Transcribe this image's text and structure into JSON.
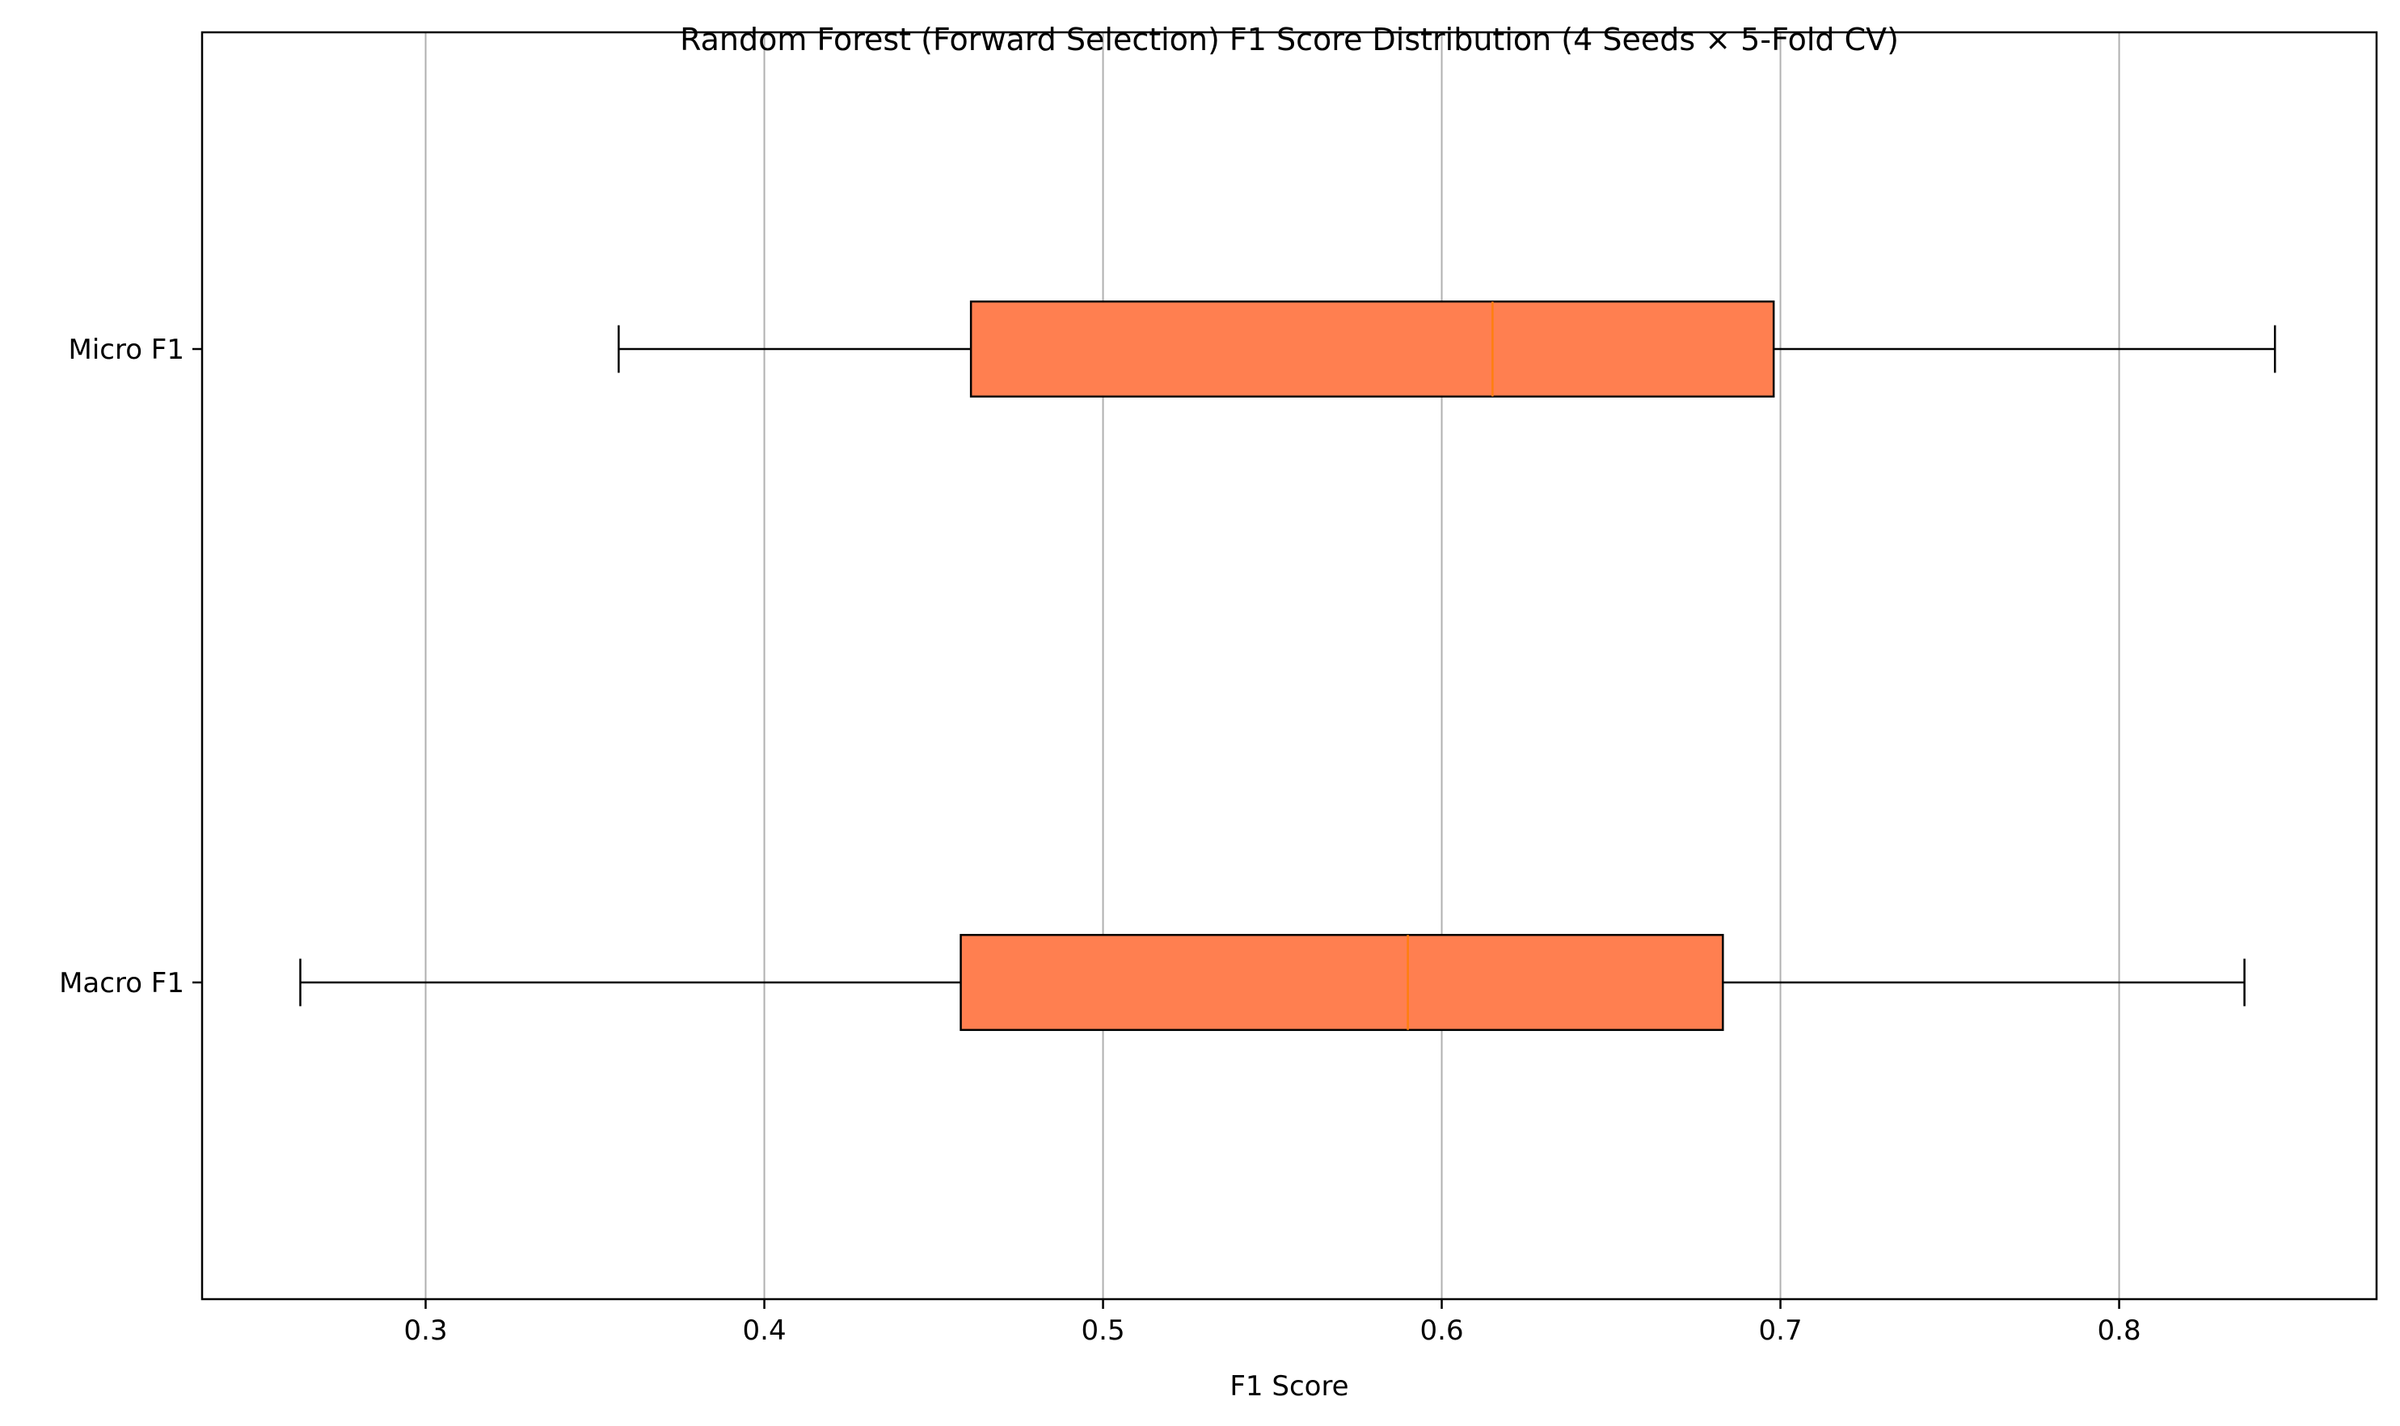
{
  "chart_data": {
    "type": "boxplot",
    "orientation": "horizontal",
    "title": "Random Forest (Forward Selection) F1 Score Distribution (4 Seeds × 5-Fold CV)",
    "xlabel": "F1 Score",
    "ylabel": "",
    "xlim": [
      0.234,
      0.876
    ],
    "x_ticks": [
      0.3,
      0.4,
      0.5,
      0.6,
      0.7,
      0.8
    ],
    "x_tick_labels": [
      "0.3",
      "0.4",
      "0.5",
      "0.6",
      "0.7",
      "0.8"
    ],
    "grid": {
      "x": true,
      "y": false
    },
    "box_color": "#ff7f50",
    "median_color": "#ff7f0e",
    "line_color": "#000000",
    "grid_color": "#b0b0b0",
    "series": [
      {
        "name": "Macro F1",
        "whisker_low": 0.263,
        "q1": 0.458,
        "median": 0.59,
        "q3": 0.683,
        "whisker_high": 0.837
      },
      {
        "name": "Micro F1",
        "whisker_low": 0.357,
        "q1": 0.461,
        "median": 0.615,
        "q3": 0.698,
        "whisker_high": 0.846
      }
    ]
  }
}
